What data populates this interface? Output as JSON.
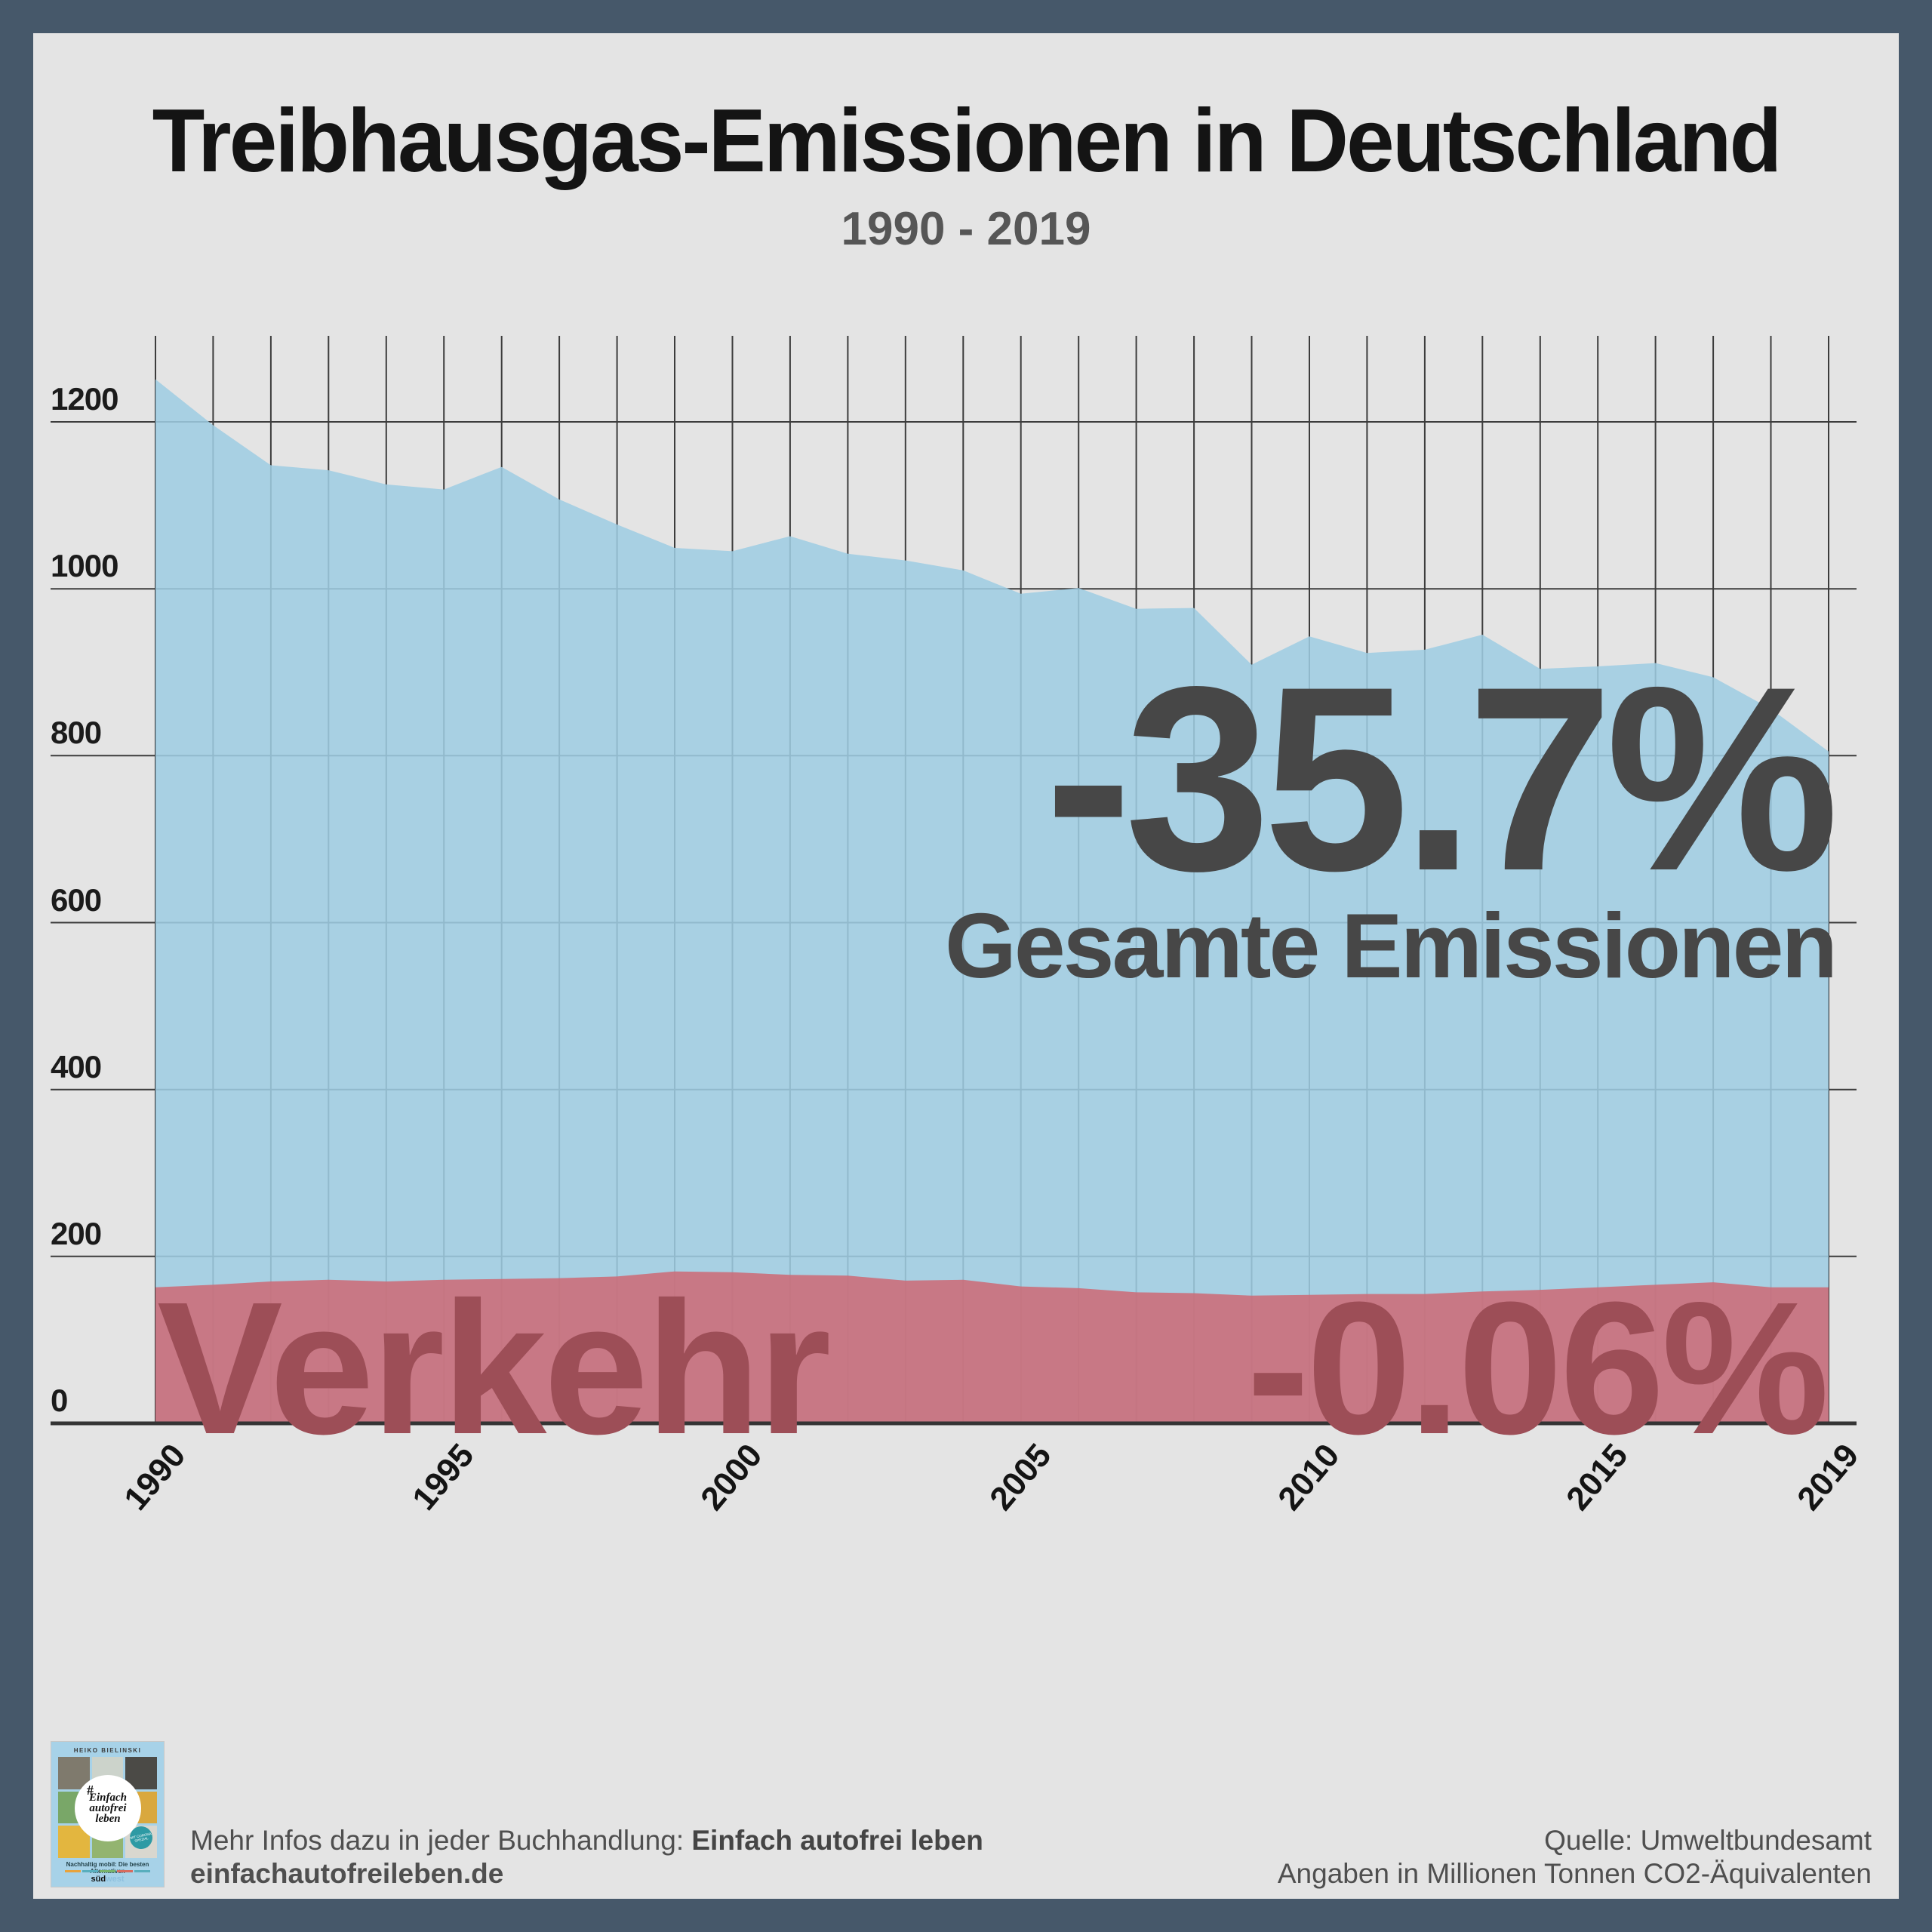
{
  "frame": {
    "border_color": "#46586a",
    "background": "#e4e4e4"
  },
  "header": {
    "title": "Treibhausgas-Emissionen in Deutschland",
    "subtitle": "1990 - 2019"
  },
  "chart_data": {
    "type": "area",
    "title": "Treibhausgas-Emissionen in Deutschland",
    "subtitle": "1990 - 2019",
    "x": [
      1990,
      1991,
      1992,
      1993,
      1994,
      1995,
      1996,
      1997,
      1998,
      1999,
      2000,
      2001,
      2002,
      2003,
      2004,
      2005,
      2006,
      2007,
      2008,
      2009,
      2010,
      2011,
      2012,
      2013,
      2014,
      2015,
      2016,
      2017,
      2018,
      2019
    ],
    "series": [
      {
        "name": "Gesamte Emissionen",
        "color": "#9fcde2",
        "values": [
          1251,
          1196,
          1148,
          1142,
          1125,
          1119,
          1146,
          1107,
          1077,
          1049,
          1045,
          1063,
          1042,
          1034,
          1022,
          994,
          1001,
          976,
          977,
          909,
          943,
          923,
          927,
          945,
          904,
          907,
          911,
          894,
          856,
          805
        ]
      },
      {
        "name": "Verkehr",
        "color": "#cc6b76",
        "values": [
          163,
          166,
          170,
          172,
          170,
          172,
          173,
          174,
          176,
          182,
          181,
          178,
          177,
          171,
          172,
          164,
          162,
          157,
          156,
          153,
          154,
          155,
          155,
          158,
          160,
          163,
          166,
          169,
          163,
          163
        ]
      }
    ],
    "ylim": [
      0,
      1300
    ],
    "y_ticks": [
      0,
      200,
      400,
      600,
      800,
      1000,
      1200
    ],
    "x_ticks": [
      1990,
      1995,
      2000,
      2005,
      2010,
      2015,
      2019
    ],
    "grid": true,
    "legend_position": "none",
    "unit": "Millionen Tonnen CO2-Äquivalente"
  },
  "annotations": {
    "total_change": "-35.7%",
    "total_label": "Gesamte Emissionen",
    "transport_label": "Verkehr",
    "transport_change": "-0.06%",
    "total_color": "#474747",
    "transport_color": "#9d4e57"
  },
  "footer": {
    "left_line1_prefix": "Mehr Infos dazu in jeder Buchhandlung: ",
    "left_line1_bold": "Einfach autofrei leben",
    "left_line2": "einfachautofreileben.de",
    "right_line1": "Quelle: Umweltbundesamt",
    "right_line2": "Angaben in Millionen Tonnen CO2-Äquivalenten"
  },
  "book": {
    "author": "HEIKO BIELINSKI",
    "hashtag": "#",
    "title_line1": "Einfach",
    "title_line2": "autofrei",
    "title_line3": "leben",
    "badge": "MIT CORONA SPEZIAL",
    "subtitle": "Nachhaltig mobil: Die besten Alternativen",
    "publisher_black": "süd",
    "publisher_blue": "west",
    "cover_bg": "#a7d2e8",
    "photo_colors": [
      "#7f7a6d",
      "#ccd3cb",
      "#4b4a46",
      "#79a768",
      "#bcdcec",
      "#d9a83e",
      "#e3b63f",
      "#93b470",
      "#d9d7cf"
    ],
    "tiny_line_colors": [
      "#e8a33d",
      "#58aebd",
      "#77b36a",
      "#d76b5e",
      "#58aebd"
    ]
  }
}
